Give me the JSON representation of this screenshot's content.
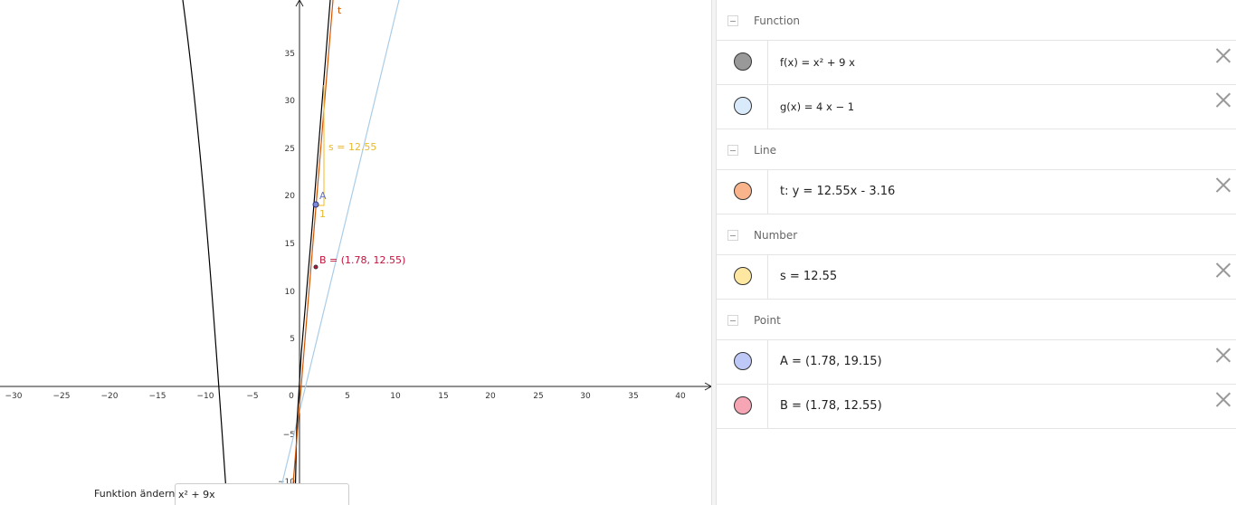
{
  "graphics": {
    "x_ticks": [
      "−30",
      "−25",
      "−20",
      "−15",
      "−10",
      "−5",
      "0",
      "5",
      "10",
      "15",
      "20",
      "25",
      "30",
      "35",
      "40"
    ],
    "y_ticks": [
      "35",
      "30",
      "25",
      "20",
      "15",
      "10",
      "5",
      "−5",
      "−10"
    ],
    "labels": {
      "t": "t",
      "s": "s = 12.55",
      "A": "A",
      "one": "1",
      "B": "B = (1.78, 12.55)"
    },
    "colors": {
      "f": "#000000",
      "g": "#a9cde8",
      "t": "#d35400",
      "s": "#f5c542",
      "A": "#4a55b0",
      "B": "#c0143c",
      "axis": "#222222"
    }
  },
  "input_bar": {
    "label": "Funktion ändern",
    "value": "x² + 9x"
  },
  "algebra": {
    "groups": [
      {
        "title": "Function",
        "items": [
          {
            "expr": "f(x)  =  x² + 9 x",
            "color": "#999999",
            "small": true
          },
          {
            "expr": "g(x)  =  4 x − 1",
            "color": "#d9ebfb",
            "small": true
          }
        ]
      },
      {
        "title": "Line",
        "items": [
          {
            "expr": "t: y = 12.55x - 3.16",
            "color": "#f9b48c",
            "small": false
          }
        ]
      },
      {
        "title": "Number",
        "items": [
          {
            "expr": "s = 12.55",
            "color": "#fde7a1",
            "small": false
          }
        ]
      },
      {
        "title": "Point",
        "items": [
          {
            "expr": "A = (1.78, 19.15)",
            "color": "#bfc9f7",
            "small": false
          },
          {
            "expr": "B = (1.78, 12.55)",
            "color": "#f6a5b4",
            "small": false
          }
        ]
      }
    ]
  }
}
